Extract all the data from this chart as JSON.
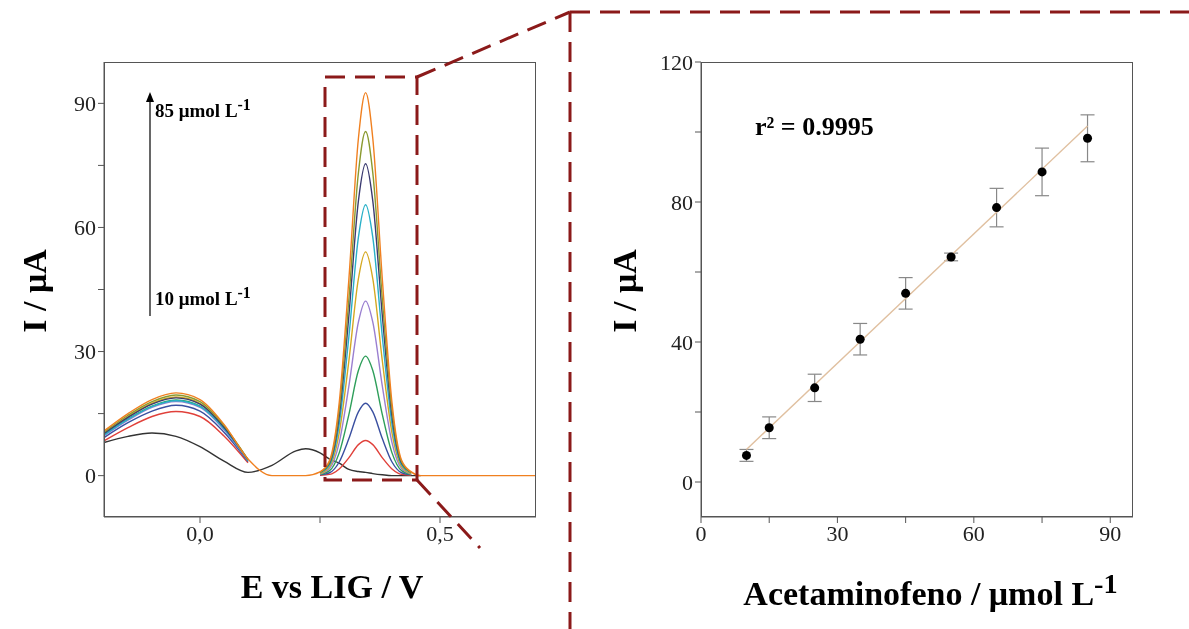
{
  "chart_data": [
    {
      "type": "line",
      "xlabel": "E vs LIG / V",
      "ylabel": "I / μA",
      "annotations": [
        "85 μmol L$^{-1}$",
        "10 μmol L$^{-1}$"
      ],
      "x": [
        -0.2,
        -0.15,
        -0.1,
        -0.05,
        0,
        0.05,
        0.1,
        0.15,
        0.2,
        0.22,
        0.25,
        0.27,
        0.29,
        0.31,
        0.33,
        0.345,
        0.36,
        0.38,
        0.4,
        0.42,
        0.44,
        0.46,
        0.5,
        0.6,
        0.7
      ],
      "series": [
        {
          "color": "#333333",
          "values": [
            8,
            9.5,
            10.3,
            9.5,
            7,
            3.5,
            0.8,
            2.5,
            6,
            6.5,
            5.5,
            4,
            3,
            1.5,
            1,
            0.8,
            0.5,
            0.2,
            0,
            0,
            0,
            0,
            null,
            null,
            null
          ]
        },
        {
          "color": "#e0403a",
          "values": [
            8.4,
            11.6,
            14.3,
            15.5,
            14.3,
            9.6,
            3.1,
            null,
            null,
            null,
            0.1,
            0.3,
            1.6,
            4.3,
            7.5,
            8.5,
            7.5,
            4.3,
            1.6,
            0.3,
            0.1,
            null,
            null,
            null,
            null
          ]
        },
        {
          "color": "#3a4fa0",
          "values": [
            9.2,
            12.8,
            15.6,
            17,
            15.6,
            10.5,
            3.4,
            null,
            null,
            null,
            0.2,
            0.7,
            3.3,
            8.9,
            15.4,
            17.5,
            15.4,
            8.9,
            3.3,
            0.7,
            0.2,
            null,
            null,
            null,
            null
          ]
        },
        {
          "color": "#2e9e5a",
          "values": [
            9.9,
            13.7,
            16.8,
            18.3,
            16.8,
            11.4,
            3.7,
            null,
            null,
            null,
            0.3,
            1.2,
            5.5,
            14.7,
            25.4,
            28.9,
            25.4,
            14.7,
            5.5,
            1.2,
            0.3,
            null,
            null,
            null,
            null
          ]
        },
        {
          "color": "#9a7fd0",
          "values": [
            9.6,
            13.4,
            16.5,
            17.9,
            16.5,
            11.1,
            3.6,
            null,
            null,
            null,
            0.4,
            1.7,
            8,
            21.5,
            37.1,
            42.2,
            37.1,
            21.5,
            8,
            1.7,
            0.4,
            null,
            null,
            null,
            null
          ]
        },
        {
          "color": "#d4a820",
          "values": [
            10.3,
            14.3,
            17.5,
            19,
            17.5,
            11.8,
            3.8,
            null,
            null,
            null,
            0.5,
            2.2,
            10.3,
            27.6,
            47.6,
            54.1,
            47.6,
            27.6,
            10.3,
            2.2,
            0.5,
            null,
            null,
            null,
            null
          ]
        },
        {
          "color": "#28b0c8",
          "values": [
            9.8,
            13.6,
            16.7,
            18.1,
            16.7,
            11.3,
            3.6,
            null,
            null,
            null,
            0.7,
            2.6,
            12.4,
            33.4,
            57.6,
            65.5,
            57.6,
            33.4,
            12.4,
            2.6,
            0.7,
            null,
            null,
            null,
            null
          ]
        },
        {
          "color": "#3a3a70",
          "values": [
            10.2,
            14.1,
            17.3,
            18.8,
            17.3,
            11.7,
            3.8,
            null,
            null,
            null,
            0.8,
            3,
            14.3,
            38.5,
            66.4,
            75.4,
            66.4,
            38.5,
            14.3,
            3,
            0.8,
            null,
            null,
            null,
            null
          ]
        },
        {
          "color": "#8a9a30",
          "values": [
            10.5,
            14.6,
            17.9,
            19.5,
            17.9,
            12.1,
            3.9,
            null,
            null,
            null,
            0.8,
            3.3,
            15.8,
            42.4,
            73.2,
            83.2,
            73.2,
            42.4,
            15.8,
            3.3,
            0.8,
            null,
            null,
            null,
            null
          ]
        },
        {
          "color": "#f08020",
          "values": [
            10.8,
            15,
            18.4,
            20,
            18.4,
            12.4,
            4,
            0,
            0,
            0,
            0.9,
            3.7,
            17.6,
            47.2,
            81.5,
            92.6,
            81.5,
            47.2,
            17.6,
            3.7,
            0.9,
            0,
            0,
            0,
            0
          ]
        }
      ],
      "xlim": [
        -0.2,
        0.7
      ],
      "xticks": [
        {
          "value": 0,
          "label": "0,0"
        },
        {
          "value": 0.25,
          "label": null
        },
        {
          "value": 0.5,
          "label": "0,5"
        }
      ],
      "ylim": [
        -10,
        100
      ],
      "yticks": [
        0,
        {
          "value": 15,
          "label": null
        },
        30,
        {
          "value": 45,
          "label": null
        },
        60,
        {
          "value": 75,
          "label": null
        },
        90
      ]
    },
    {
      "type": "scatter",
      "xlabel": "Acetaminofeno / μmol L$^{-1}$",
      "ylabel": "I / μA",
      "annotations": [
        "r² = 0.9995"
      ],
      "x": [
        10,
        15,
        25,
        35,
        45,
        55,
        65,
        75,
        85
      ],
      "series": [
        {
          "color": "#000000",
          "marker": "circle",
          "values": [
            7.6,
            15.5,
            26.9,
            40.8,
            53.9,
            64.3,
            78.4,
            88.6,
            98.2
          ],
          "errors": [
            1.7,
            3.1,
            3.9,
            4.5,
            4.5,
            1.1,
            5.5,
            6.8,
            6.7
          ]
        },
        {
          "type": "line",
          "color": "#e0c0a0",
          "x": [
            10,
            85
          ],
          "values": [
            9.3,
            101.7
          ]
        }
      ],
      "xlim": [
        0,
        95
      ],
      "xticks": [
        0,
        {
          "value": 15,
          "label": null
        },
        30,
        {
          "value": 45,
          "label": null
        },
        60,
        {
          "value": 75,
          "label": null
        },
        90
      ],
      "ylim": [
        -10,
        120
      ],
      "yticks": [
        0,
        {
          "value": 20,
          "label": null
        },
        40,
        {
          "value": 60,
          "label": null
        },
        80,
        {
          "value": 100,
          "label": null
        },
        120
      ]
    }
  ]
}
